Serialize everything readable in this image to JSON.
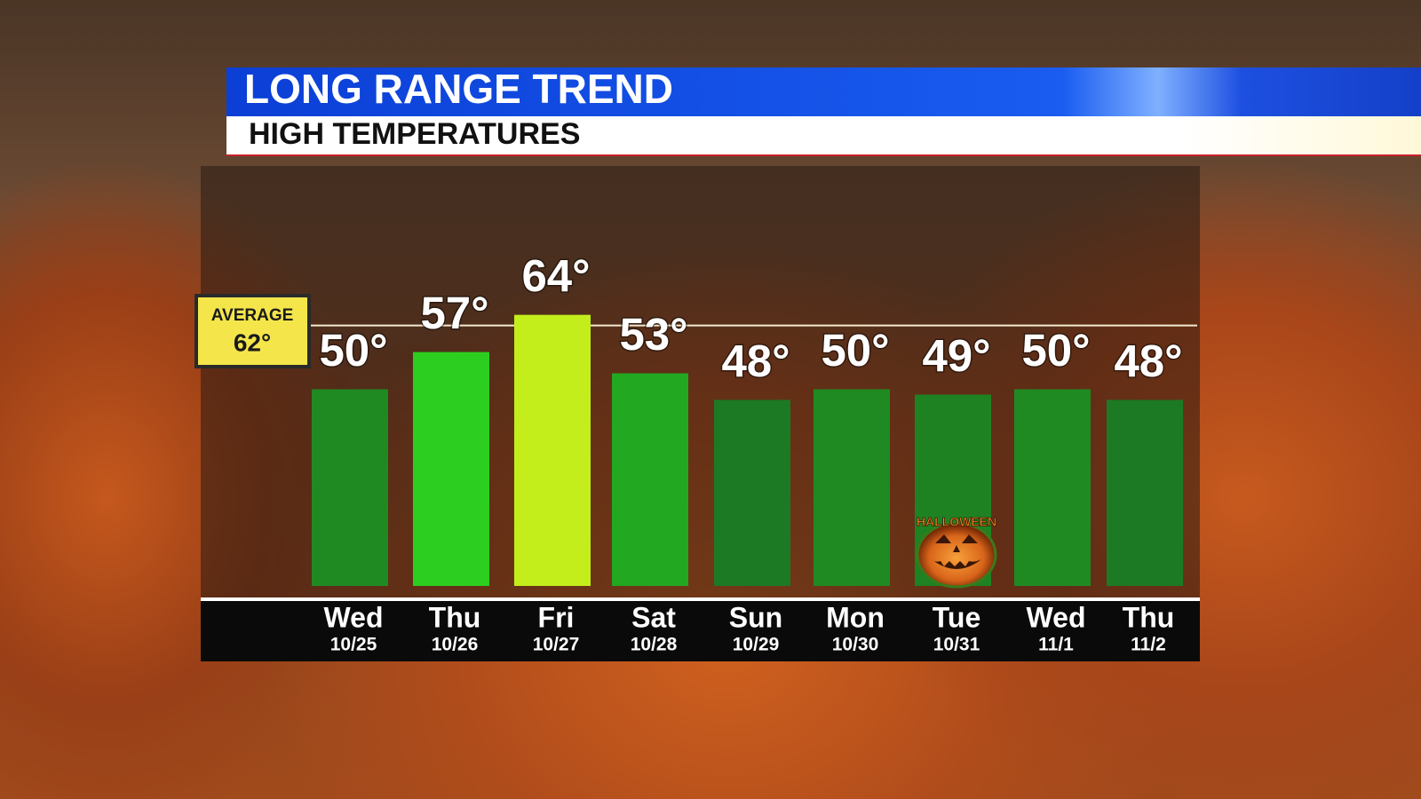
{
  "chart_data": {
    "type": "bar",
    "title": "LONG RANGE TREND",
    "subtitle": "HIGH TEMPERATURES",
    "categories": [
      "Wed",
      "Thu",
      "Fri",
      "Sat",
      "Sun",
      "Mon",
      "Tue",
      "Wed",
      "Thu"
    ],
    "dates": [
      "10/25",
      "10/26",
      "10/27",
      "10/28",
      "10/29",
      "10/30",
      "10/31",
      "11/1",
      "11/2"
    ],
    "values": [
      50,
      57,
      64,
      53,
      48,
      50,
      49,
      50,
      48
    ],
    "value_labels": [
      "50°",
      "57°",
      "64°",
      "53°",
      "48°",
      "50°",
      "49°",
      "50°",
      "48°"
    ],
    "colors": [
      "#1f8a22",
      "#2ccf1f",
      "#c3ee1c",
      "#22a821",
      "#1d7a24",
      "#1f8a22",
      "#1f8222",
      "#1f8a22",
      "#1d7a24"
    ],
    "ylim": [
      13,
      92
    ],
    "average": {
      "name": "AVERAGE",
      "value": 62,
      "label": "62°"
    },
    "annotation": "HALLOWEEN"
  }
}
